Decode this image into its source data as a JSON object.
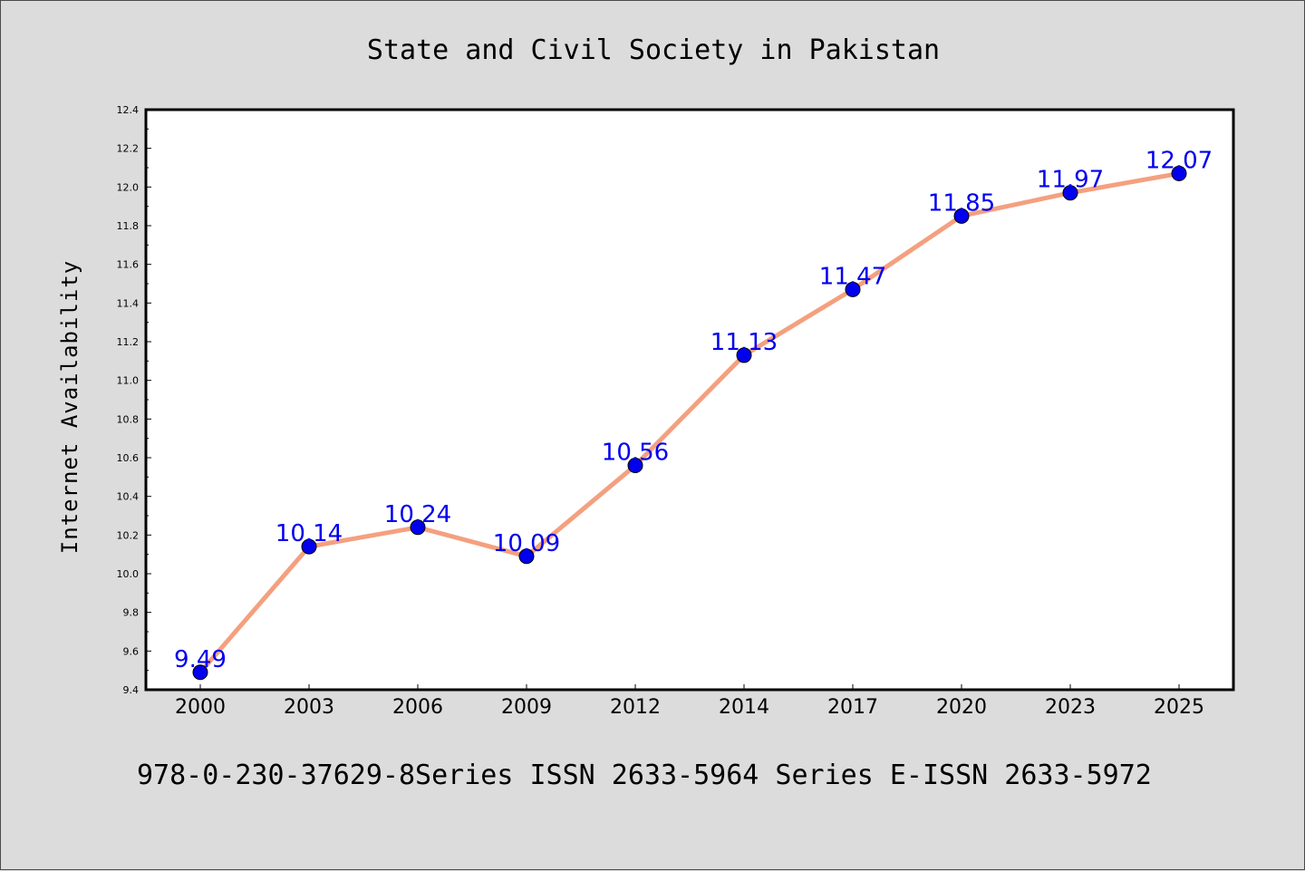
{
  "chart_data": {
    "type": "line",
    "title": "State and Civil Society in Pakistan",
    "ylabel": "Internet Availability",
    "xlabel": "",
    "categories": [
      "2000",
      "2003",
      "2006",
      "2009",
      "2012",
      "2014",
      "2017",
      "2020",
      "2023",
      "2025"
    ],
    "series": [
      {
        "values": [
          9.49,
          10.14,
          10.24,
          10.09,
          10.56,
          11.13,
          11.47,
          11.85,
          11.97,
          12.07
        ],
        "labels": [
          "9.49",
          "10.14",
          "10.24",
          "10.09",
          "10.56",
          "11.13",
          "11.47",
          "11.85",
          "11.97",
          "12.07"
        ],
        "line_color": "#f4a07f",
        "marker_color": "#0000ee",
        "label_color": "#0000ee"
      }
    ],
    "ylim": [
      9.4,
      12.4
    ],
    "yticks": [
      "9.4",
      "9.6",
      "9.8",
      "10.0",
      "10.2",
      "10.4",
      "10.6",
      "10.8",
      "11.0",
      "11.2",
      "11.4",
      "11.6",
      "11.8",
      "12.0",
      "12.2",
      "12.4"
    ],
    "grid": false,
    "legend": "none"
  },
  "footer": {
    "text": "978-0-230-37629-8Series ISSN 2633-5964 Series E-ISSN 2633-5972"
  },
  "colors": {
    "background": "#dcdcdc",
    "plot_background": "#ffffff"
  }
}
